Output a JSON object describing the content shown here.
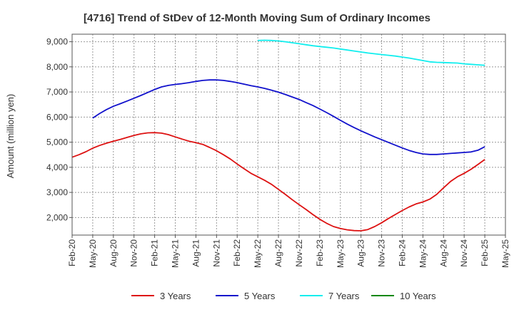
{
  "chart_data": {
    "type": "line",
    "title": "[4716]  Trend of StDev of 12-Month Moving Sum of Ordinary Incomes",
    "ylabel": "Amount (million yen)",
    "xlabel": "",
    "ylim": [
      1300,
      9300
    ],
    "yticks": [
      2000,
      3000,
      4000,
      5000,
      6000,
      7000,
      8000,
      9000
    ],
    "ytick_labels": [
      "2,000",
      "3,000",
      "4,000",
      "5,000",
      "6,000",
      "7,000",
      "8,000",
      "9,000"
    ],
    "xlim": [
      "2020-02",
      "2025-05"
    ],
    "xticks": [
      "2020-02",
      "2020-05",
      "2020-08",
      "2020-11",
      "2021-02",
      "2021-05",
      "2021-08",
      "2021-11",
      "2022-02",
      "2022-05",
      "2022-08",
      "2022-11",
      "2023-02",
      "2023-05",
      "2023-08",
      "2023-11",
      "2024-02",
      "2024-05",
      "2024-08",
      "2024-11",
      "2025-02",
      "2025-05"
    ],
    "xtick_labels": [
      "Feb-20",
      "May-20",
      "Aug-20",
      "Nov-20",
      "Feb-21",
      "May-21",
      "Aug-21",
      "Nov-21",
      "Feb-22",
      "May-22",
      "Aug-22",
      "Nov-22",
      "Feb-23",
      "May-23",
      "Aug-23",
      "Nov-23",
      "Feb-24",
      "May-24",
      "Aug-24",
      "Nov-24",
      "Feb-25",
      "May-25"
    ],
    "grid": true,
    "legend_position": "bottom",
    "series": [
      {
        "name": "3 Years",
        "color": "#dd1111",
        "x": [
          "2020-02",
          "2020-03",
          "2020-04",
          "2020-05",
          "2020-06",
          "2020-07",
          "2020-08",
          "2020-09",
          "2020-10",
          "2020-11",
          "2020-12",
          "2021-01",
          "2021-02",
          "2021-03",
          "2021-04",
          "2021-05",
          "2021-06",
          "2021-07",
          "2021-08",
          "2021-09",
          "2021-10",
          "2021-11",
          "2021-12",
          "2022-01",
          "2022-02",
          "2022-03",
          "2022-04",
          "2022-05",
          "2022-06",
          "2022-07",
          "2022-08",
          "2022-09",
          "2022-10",
          "2022-11",
          "2022-12",
          "2023-01",
          "2023-02",
          "2023-03",
          "2023-04",
          "2023-05",
          "2023-06",
          "2023-07",
          "2023-08",
          "2023-09",
          "2023-10",
          "2023-11",
          "2023-12",
          "2024-01",
          "2024-02",
          "2024-03",
          "2024-04",
          "2024-05",
          "2024-06",
          "2024-07",
          "2024-08",
          "2024-09",
          "2024-10",
          "2024-11",
          "2024-12",
          "2025-01",
          "2025-02"
        ],
        "y": [
          4400,
          4500,
          4620,
          4760,
          4870,
          4960,
          5040,
          5110,
          5190,
          5270,
          5330,
          5370,
          5380,
          5360,
          5300,
          5210,
          5120,
          5040,
          4980,
          4910,
          4790,
          4660,
          4500,
          4330,
          4130,
          3940,
          3760,
          3620,
          3480,
          3320,
          3120,
          2920,
          2710,
          2510,
          2320,
          2120,
          1930,
          1770,
          1640,
          1560,
          1510,
          1480,
          1470,
          1520,
          1640,
          1790,
          1960,
          2120,
          2280,
          2420,
          2540,
          2620,
          2730,
          2920,
          3180,
          3430,
          3620,
          3760,
          3920,
          4110,
          4310
        ]
      },
      {
        "name": "5 Years",
        "color": "#1111cc",
        "x": [
          "2020-05",
          "2020-06",
          "2020-07",
          "2020-08",
          "2020-09",
          "2020-10",
          "2020-11",
          "2020-12",
          "2021-01",
          "2021-02",
          "2021-03",
          "2021-04",
          "2021-05",
          "2021-06",
          "2021-07",
          "2021-08",
          "2021-09",
          "2021-10",
          "2021-11",
          "2021-12",
          "2022-01",
          "2022-02",
          "2022-03",
          "2022-04",
          "2022-05",
          "2022-06",
          "2022-07",
          "2022-08",
          "2022-09",
          "2022-10",
          "2022-11",
          "2022-12",
          "2023-01",
          "2023-02",
          "2023-03",
          "2023-04",
          "2023-05",
          "2023-06",
          "2023-07",
          "2023-08",
          "2023-09",
          "2023-10",
          "2023-11",
          "2023-12",
          "2024-01",
          "2024-02",
          "2024-03",
          "2024-04",
          "2024-05",
          "2024-06",
          "2024-07",
          "2024-08",
          "2024-09",
          "2024-10",
          "2024-11",
          "2024-12",
          "2025-01",
          "2025-02"
        ],
        "y": [
          5960,
          6140,
          6300,
          6430,
          6530,
          6640,
          6750,
          6860,
          6980,
          7100,
          7200,
          7260,
          7300,
          7330,
          7370,
          7420,
          7460,
          7480,
          7480,
          7460,
          7420,
          7370,
          7310,
          7250,
          7200,
          7140,
          7070,
          6990,
          6900,
          6800,
          6700,
          6580,
          6460,
          6320,
          6180,
          6030,
          5870,
          5720,
          5580,
          5450,
          5330,
          5210,
          5100,
          4990,
          4880,
          4770,
          4670,
          4590,
          4530,
          4510,
          4510,
          4530,
          4550,
          4570,
          4590,
          4610,
          4680,
          4820
        ]
      },
      {
        "name": "7 Years",
        "color": "#11eeee",
        "x": [
          "2022-05",
          "2022-06",
          "2022-07",
          "2022-08",
          "2022-09",
          "2022-10",
          "2022-11",
          "2022-12",
          "2023-01",
          "2023-02",
          "2023-03",
          "2023-04",
          "2023-05",
          "2023-06",
          "2023-07",
          "2023-08",
          "2023-09",
          "2023-10",
          "2023-11",
          "2023-12",
          "2024-01",
          "2024-02",
          "2024-03",
          "2024-04",
          "2024-05",
          "2024-06",
          "2024-07",
          "2024-08",
          "2024-09",
          "2024-10",
          "2024-11",
          "2024-12",
          "2025-01",
          "2025-02"
        ],
        "y": [
          9050,
          9060,
          9050,
          9030,
          9000,
          8960,
          8920,
          8880,
          8840,
          8810,
          8780,
          8750,
          8710,
          8670,
          8630,
          8590,
          8550,
          8520,
          8490,
          8460,
          8430,
          8390,
          8350,
          8300,
          8250,
          8200,
          8180,
          8170,
          8160,
          8150,
          8120,
          8100,
          8080,
          8060
        ]
      },
      {
        "name": "10 Years",
        "color": "#118811",
        "x": [],
        "y": []
      }
    ]
  }
}
